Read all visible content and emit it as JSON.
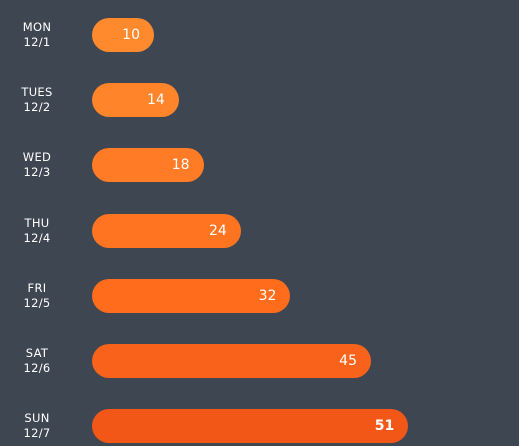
{
  "chart_data": {
    "type": "bar",
    "orientation": "horizontal",
    "categories": [
      {
        "day": "MON",
        "date": "12/1"
      },
      {
        "day": "TUES",
        "date": "12/2"
      },
      {
        "day": "WED",
        "date": "12/3"
      },
      {
        "day": "THU",
        "date": "12/4"
      },
      {
        "day": "FRI",
        "date": "12/5"
      },
      {
        "day": "SAT",
        "date": "12/6"
      },
      {
        "day": "SUN",
        "date": "12/7"
      }
    ],
    "values": [
      10,
      14,
      18,
      24,
      32,
      45,
      51
    ],
    "title": "",
    "xlabel": "",
    "ylabel": "",
    "grid": false,
    "legend": "none",
    "highlight_index": 6,
    "colors": {
      "background": "#3e4652",
      "bars": [
        "#ff8a2e",
        "#ff842a",
        "#ff7b25",
        "#ff7420",
        "#ff6d1c",
        "#f9621a",
        "#f25717"
      ],
      "text": "#ffffff"
    }
  }
}
